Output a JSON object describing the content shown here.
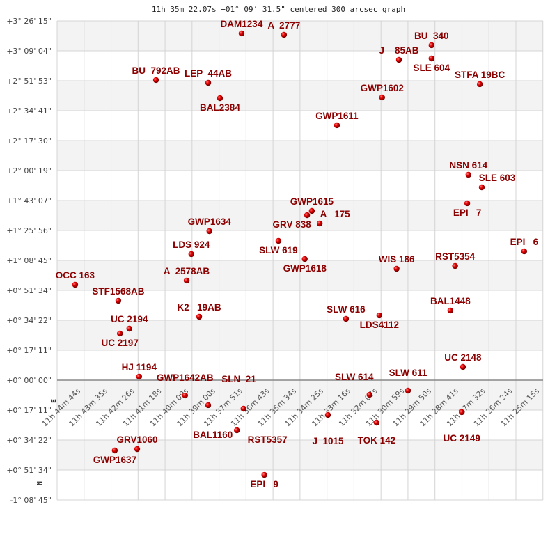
{
  "chart_data": {
    "type": "scatter",
    "title": "11h 35m 22.07s +01° 09′ 31.5\" centered 300 arcsec graph",
    "xlabel": "",
    "ylabel": "",
    "x_ticks": [
      "11h 44m 44s",
      "11h 43m 35s",
      "11h 42m 26s",
      "11h 41m 18s",
      "11h 40m 09s",
      "11h 39m 00s",
      "11h 37m 51s",
      "11h 36m 43s",
      "11h 35m 34s",
      "11h 34m 25s",
      "11h 33m 16s",
      "11h 32m 07s",
      "11h 30m 59s",
      "11h 29m 50s",
      "11h 28m 41s",
      "11h 27m 32s",
      "11h 26m 24s",
      "11h 25m 15s"
    ],
    "y_ticks": [
      "+3° 26' 15\"",
      "+3° 09' 04\"",
      "+2° 51' 53\"",
      "+2° 34' 41\"",
      "+2° 17' 30\"",
      "+2° 00' 19\"",
      "+1° 43' 07\"",
      "+1° 25' 56\"",
      "+1° 08' 45\"",
      "+0° 51' 34\"",
      "+0° 34' 22\"",
      "+0° 17' 11\"",
      "+0° 00' 00\"",
      "+0° 17' 11\"",
      "+0° 34' 22\"",
      "+0° 51' 34\"",
      "-1° 08' 45\""
    ],
    "ylim": [
      "-1° 08' 45\"",
      "+3° 26' 15\""
    ],
    "x_direction": "RA decreasing to the right",
    "grid": true,
    "compass": {
      "east": "E",
      "north": "N"
    },
    "colors": {
      "marker": "#e00000",
      "label": "#8b0000",
      "band": "#f3f3f3",
      "grid": "#d4d4d4",
      "zero_line": "#888888"
    },
    "points": [
      {
        "name": "DAM1234",
        "ra": "11h 36m 54s",
        "dec": "+3° 19' 04\"",
        "label": "above"
      },
      {
        "name": "A  2777",
        "ra": "11h 35m 06s",
        "dec": "+3° 18' 16\"",
        "label": "above"
      },
      {
        "name": "BU  340",
        "ra": "11h 28m 50s",
        "dec": "+3° 12' 16\"",
        "label": "above"
      },
      {
        "name": "SLE 604",
        "ra": "11h 28m 50s",
        "dec": "+3° 04' 40\"",
        "label": "above"
      },
      {
        "name": "J    85AB",
        "ra": "11h 30m 13s",
        "dec": "+3° 03' 52\"",
        "label": "above"
      },
      {
        "name": "BU  792AB",
        "ra": "11h 40m 32s",
        "dec": "+2° 52' 17\"",
        "label": "above"
      },
      {
        "name": "LEP  44AB",
        "ra": "11h 38m 19s",
        "dec": "+2° 50' 41\"",
        "label": "above"
      },
      {
        "name": "BAL2384",
        "ra": "11h 37m 49s",
        "dec": "+2° 41' 53\"",
        "label": "above"
      },
      {
        "name": "STFA 19BC",
        "ra": "11h 26m 47s",
        "dec": "+2° 49' 53\"",
        "label": "above"
      },
      {
        "name": "GWP1602",
        "ra": "11h 30m 56s",
        "dec": "+2° 42' 17\"",
        "label": "above"
      },
      {
        "name": "GWP1611",
        "ra": "11h 32m 51s",
        "dec": "+2° 26' 18\"",
        "label": "above"
      },
      {
        "name": "NSN 614",
        "ra": "11h 27m 16s",
        "dec": "+1° 57' 55\"",
        "label": "above"
      },
      {
        "name": "SLE 603",
        "ra": "11h 26m 42s",
        "dec": "+1° 50' 43\"",
        "label": "above"
      },
      {
        "name": "EPI   7",
        "ra": "11h 27m 19s",
        "dec": "+1° 41' 32\"",
        "label": "above"
      },
      {
        "name": "GWP1615",
        "ra": "11h 33m 55s",
        "dec": "+1° 37' 08\"",
        "label": "above"
      },
      {
        "name": "GRV 838",
        "ra": "11h 34m 07s",
        "dec": "+1° 34' 44\"",
        "label": "above"
      },
      {
        "name": "A   175",
        "ra": "11h 33m 35s",
        "dec": "+1° 29' 56\"",
        "label": "above"
      },
      {
        "name": "GWP1634",
        "ra": "11h 38m 16s",
        "dec": "+1° 25' 32\"",
        "label": "above"
      },
      {
        "name": "SLW 619",
        "ra": "11h 35m 20s",
        "dec": "+1° 19' 57\"",
        "label": "above"
      },
      {
        "name": "LDS 924",
        "ra": "11h 39m 02s",
        "dec": "+1° 12' 21\"",
        "label": "above"
      },
      {
        "name": "GWP1618",
        "ra": "11h 34m 13s",
        "dec": "+1° 09' 33\"",
        "label": "above"
      },
      {
        "name": "EPI   6",
        "ra": "11h 24m 54s",
        "dec": "+1° 13' 57\"",
        "label": "above"
      },
      {
        "name": "RST5354",
        "ra": "11h 27m 50s",
        "dec": "+1° 05' 33\"",
        "label": "above"
      },
      {
        "name": "WIS 186",
        "ra": "11h 30m 19s",
        "dec": "+1° 03' 57\"",
        "label": "above"
      },
      {
        "name": "OCC 163",
        "ra": "11h 43m 58s",
        "dec": "+0° 54' 46\"",
        "label": "above"
      },
      {
        "name": "A  2578AB",
        "ra": "11h 39m 14s",
        "dec": "+0° 57' 10\"",
        "label": "above"
      },
      {
        "name": "STF1568AB",
        "ra": "11h 42m 08s",
        "dec": "+0° 45' 34\"",
        "label": "above"
      },
      {
        "name": "BAL1448",
        "ra": "11h 28m 02s",
        "dec": "+0° 39' 58\"",
        "label": "above"
      },
      {
        "name": "K2   19AB",
        "ra": "11h 38m 42s",
        "dec": "+0° 36' 23\"",
        "label": "above"
      },
      {
        "name": "SLW 616",
        "ra": "11h 32m 28s",
        "dec": "+0° 35' 11\"",
        "label": "above"
      },
      {
        "name": "LDS4112",
        "ra": "11h 31m 03s",
        "dec": "+0° 37' 10\"",
        "label": "above"
      },
      {
        "name": "UC 2194",
        "ra": "11h 41m 40s",
        "dec": "+0° 29' 35\"",
        "label": "above"
      },
      {
        "name": "UC 2197",
        "ra": "11h 42m 04s",
        "dec": "+0° 26' 47\"",
        "label": "above"
      },
      {
        "name": "UC 2148",
        "ra": "11h 27m 30s",
        "dec": "+0° 07' 36\"",
        "label": "above"
      },
      {
        "name": "HJ 1194",
        "ra": "11h 41m 15s",
        "dec": "+0° 02' 00\"",
        "label": "above"
      },
      {
        "name": "SLW 611",
        "ra": "11h 29m 50s",
        "dec": "-0° 06' 00\"",
        "label": "below"
      },
      {
        "name": "SLW 614",
        "ra": "11h 31m 28s",
        "dec": "-0° 08' 24\"",
        "label": "below"
      },
      {
        "name": "GWP1642AB",
        "ra": "11h 39m 18s",
        "dec": "-0° 08' 48\"",
        "label": "below"
      },
      {
        "name": "SLN  21",
        "ra": "11h 38m 19s",
        "dec": "-0° 14' 23\"",
        "label": "below"
      },
      {
        "name": "BAL1160",
        "ra": "11h 36m 49s",
        "dec": "-0° 16' 23\"",
        "label": "below"
      },
      {
        "name": "J  1015",
        "ra": "11h 33m 14s",
        "dec": "-0° 19' 59\"",
        "label": "below"
      },
      {
        "name": "UC 2149",
        "ra": "11h 27m 33s",
        "dec": "-0° 18' 23\"",
        "label": "below"
      },
      {
        "name": "TOK 142",
        "ra": "11h 31m 10s",
        "dec": "-0° 24' 23\"",
        "label": "below"
      },
      {
        "name": "RST5357",
        "ra": "11h 37m 06s",
        "dec": "-0° 28' 47\"",
        "label": "below"
      },
      {
        "name": "GWP1637",
        "ra": "11h 42m 17s",
        "dec": "-0° 40' 22\"",
        "label": "below"
      },
      {
        "name": "GRV1060",
        "ra": "11h 41m 20s",
        "dec": "-0° 39' 34\"",
        "label": "below"
      },
      {
        "name": "EPI   9",
        "ra": "11h 35m 56s",
        "dec": "-0° 54' 22\"",
        "label": "below"
      }
    ]
  }
}
